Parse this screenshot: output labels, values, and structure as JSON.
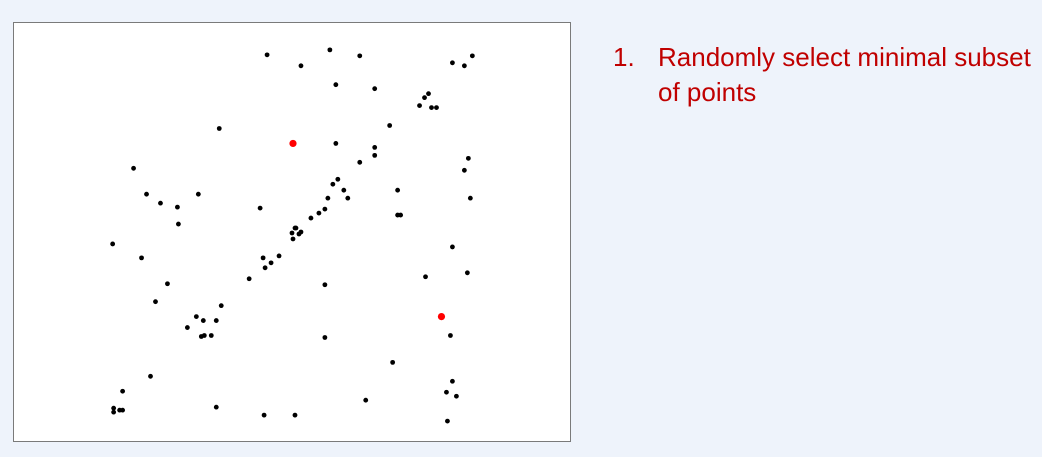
{
  "steps": [
    {
      "number": "1.",
      "text": "Randomly select minimal subset of points"
    }
  ],
  "colors": {
    "point": "#000000",
    "selected_point": "#ff0000",
    "step_text": "#c00000",
    "background": "#eef3fb"
  },
  "chart_data": {
    "type": "scatter",
    "title": "",
    "xlabel": "",
    "ylabel": "",
    "xlim": [
      0,
      558
    ],
    "ylim": [
      0,
      420
    ],
    "grid": false,
    "series": [
      {
        "role": "points",
        "color": "#000000",
        "x": [
          254,
          288,
          317,
          347,
          440,
          452,
          460,
          323,
          362,
          416,
          407,
          412,
          419,
          424,
          206,
          377,
          323,
          362,
          362,
          347,
          120,
          133,
          147,
          164,
          185,
          165,
          325,
          320,
          331,
          335,
          315,
          312,
          306,
          298,
          283,
          279,
          282,
          286,
          280,
          288,
          247,
          266,
          258,
          252,
          250,
          236,
          385,
          388,
          385,
          99,
          128,
          154,
          142,
          208,
          203,
          190,
          198,
          183,
          174,
          188,
          191,
          312,
          312,
          380,
          456,
          452,
          458,
          440,
          413,
          455,
          438,
          440,
          444,
          434,
          435,
          137,
          109,
          106,
          100,
          100,
          109,
          203,
          251,
          282,
          353
        ],
        "y": [
          32,
          43,
          27,
          33,
          40,
          43,
          33,
          62,
          66,
          71,
          83,
          75,
          85,
          85,
          106,
          103,
          121,
          125,
          133,
          140,
          146,
          172,
          181,
          185,
          172,
          202,
          157,
          162,
          168,
          176,
          176,
          187,
          191,
          196,
          206,
          211,
          206,
          212,
          217,
          210,
          186,
          234,
          241,
          246,
          236,
          257,
          168,
          193,
          193,
          222,
          236,
          262,
          280,
          284,
          299,
          299,
          314,
          295,
          306,
          315,
          314,
          263,
          316,
          341,
          136,
          148,
          176,
          225,
          255,
          251,
          314,
          360,
          375,
          371,
          400,
          355,
          370,
          389,
          387,
          391,
          389,
          386,
          394,
          394,
          379
        ]
      },
      {
        "role": "selected",
        "color": "#ff0000",
        "x": [
          280,
          429
        ],
        "y": [
          121,
          295
        ]
      }
    ]
  }
}
